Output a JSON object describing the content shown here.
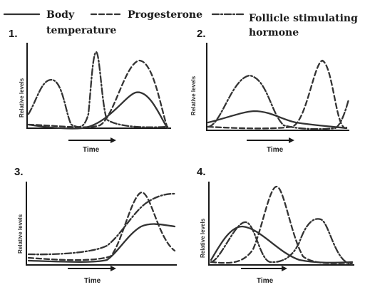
{
  "legend": {
    "body_temperature_line1": "Body",
    "body_temperature_line2": "temperature",
    "progesterone": "Progesterone",
    "fsh_line1": "Follicle stimulating",
    "fsh_line2": "hormone"
  },
  "panels": [
    {
      "number": "1.",
      "ylabel": "Relative levels",
      "xlabel": "Time"
    },
    {
      "number": "2.",
      "ylabel": "Relative levels",
      "xlabel": "Time"
    },
    {
      "number": "3.",
      "ylabel": "Relative levels",
      "xlabel": "Time"
    },
    {
      "number": "4.",
      "ylabel": "Relative levels",
      "xlabel": "Time"
    }
  ],
  "colors": {
    "ink": "#333333",
    "background": "#ffffff"
  }
}
